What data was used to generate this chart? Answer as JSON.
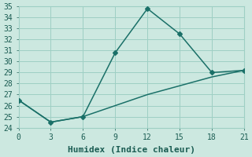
{
  "title": "",
  "xlabel": "Humidex (Indice chaleur)",
  "line1_x": [
    0,
    3,
    6,
    9,
    12,
    15,
    18,
    21
  ],
  "line1_y": [
    26.5,
    24.5,
    25.0,
    30.8,
    34.8,
    32.5,
    29.0,
    29.2
  ],
  "line2_x": [
    0,
    3,
    6,
    9,
    12,
    15,
    18,
    21
  ],
  "line2_y": [
    26.5,
    24.5,
    25.0,
    26.0,
    27.0,
    27.8,
    28.6,
    29.2
  ],
  "line_color": "#1a7068",
  "bg_color": "#cce8e0",
  "grid_color": "#9ecfc4",
  "xlim": [
    0,
    21
  ],
  "ylim": [
    24,
    35
  ],
  "xticks": [
    0,
    3,
    6,
    9,
    12,
    15,
    18,
    21
  ],
  "yticks": [
    24,
    25,
    26,
    27,
    28,
    29,
    30,
    31,
    32,
    33,
    34,
    35
  ],
  "marker": "D",
  "marker_size": 3,
  "linewidth": 1.1,
  "font_family": "monospace",
  "tick_fontsize": 7,
  "xlabel_fontsize": 8
}
